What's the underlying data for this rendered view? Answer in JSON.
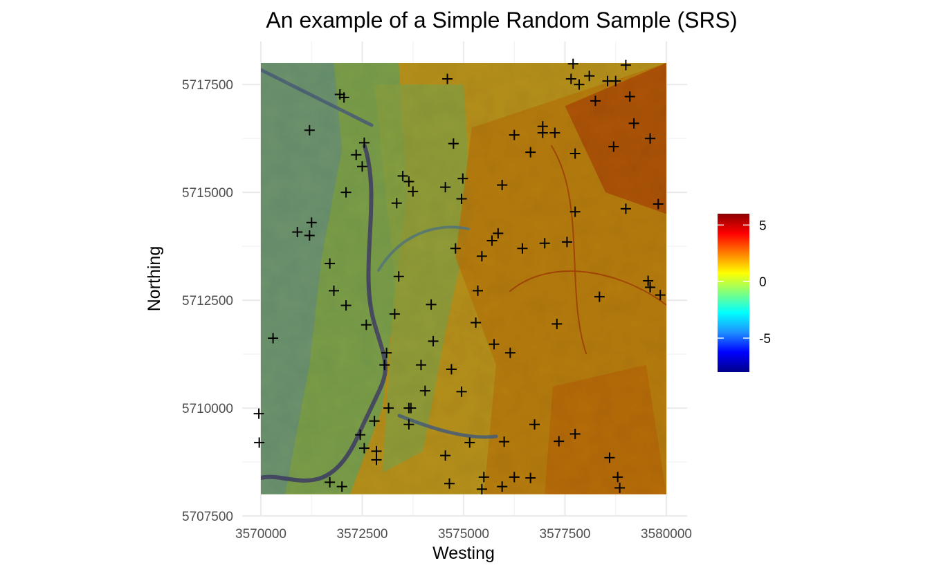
{
  "chart_data": {
    "type": "scatter",
    "title": "An example of a Simple Random Sample (SRS)",
    "xlabel": "Westing",
    "ylabel": "Northing",
    "xlim": [
      3570000,
      3580000
    ],
    "ylim": [
      5707500,
      5718000
    ],
    "raster_extent": {
      "x": [
        3570000,
        3580000
      ],
      "y": [
        5708000,
        5718000
      ]
    },
    "x_ticks": [
      3570000,
      3572500,
      3575000,
      3577500,
      3580000
    ],
    "y_ticks": [
      5707500,
      5710000,
      5712500,
      5715000,
      5717500
    ],
    "x_tick_labels": [
      "3570000",
      "3572500",
      "3575000",
      "3577500",
      "3580000"
    ],
    "y_tick_labels": [
      "5707500",
      "5710000",
      "5712500",
      "5715000",
      "5717500"
    ],
    "grid": true,
    "background_raster": "continuous terrain raster, low values in west, high values in east",
    "legend": {
      "position": "right",
      "range": [
        -8,
        6
      ],
      "ticks": [
        5,
        0,
        -5
      ],
      "tick_labels": [
        "5",
        "0",
        "-5"
      ],
      "colors": [
        "#00008b",
        "#0000ff",
        "#1e90ff",
        "#00ffff",
        "#7fff7f",
        "#ffff00",
        "#ff7f00",
        "#ff0000",
        "#8b0000"
      ]
    },
    "marker": "+",
    "points": [
      {
        "x": 3569950,
        "y": 5709870
      },
      {
        "x": 3569960,
        "y": 5709200
      },
      {
        "x": 3570300,
        "y": 5711620
      },
      {
        "x": 3570900,
        "y": 5714080
      },
      {
        "x": 3571200,
        "y": 5714000
      },
      {
        "x": 3571250,
        "y": 5714300
      },
      {
        "x": 3571200,
        "y": 5716440
      },
      {
        "x": 3571700,
        "y": 5713350
      },
      {
        "x": 3571800,
        "y": 5712720
      },
      {
        "x": 3571700,
        "y": 5708280
      },
      {
        "x": 3572000,
        "y": 5708180
      },
      {
        "x": 3571950,
        "y": 5717270
      },
      {
        "x": 3572050,
        "y": 5717200
      },
      {
        "x": 3572100,
        "y": 5715000
      },
      {
        "x": 3572100,
        "y": 5712380
      },
      {
        "x": 3572350,
        "y": 5715870
      },
      {
        "x": 3572450,
        "y": 5709380
      },
      {
        "x": 3572500,
        "y": 5715600
      },
      {
        "x": 3572550,
        "y": 5716150
      },
      {
        "x": 3572550,
        "y": 5709070
      },
      {
        "x": 3572600,
        "y": 5711930
      },
      {
        "x": 3572800,
        "y": 5709700
      },
      {
        "x": 3572850,
        "y": 5709000
      },
      {
        "x": 3572850,
        "y": 5708800
      },
      {
        "x": 3573100,
        "y": 5711280
      },
      {
        "x": 3573050,
        "y": 5711000
      },
      {
        "x": 3573150,
        "y": 5710000
      },
      {
        "x": 3573300,
        "y": 5712180
      },
      {
        "x": 3573350,
        "y": 5714750
      },
      {
        "x": 3573400,
        "y": 5713050
      },
      {
        "x": 3573500,
        "y": 5715380
      },
      {
        "x": 3573650,
        "y": 5715250
      },
      {
        "x": 3573650,
        "y": 5710000
      },
      {
        "x": 3573700,
        "y": 5710000
      },
      {
        "x": 3573750,
        "y": 5715020
      },
      {
        "x": 3573650,
        "y": 5709620
      },
      {
        "x": 3573950,
        "y": 5711000
      },
      {
        "x": 3574050,
        "y": 5710400
      },
      {
        "x": 3574200,
        "y": 5712400
      },
      {
        "x": 3574250,
        "y": 5711550
      },
      {
        "x": 3574550,
        "y": 5715120
      },
      {
        "x": 3574600,
        "y": 5717630
      },
      {
        "x": 3574550,
        "y": 5708900
      },
      {
        "x": 3574650,
        "y": 5708250
      },
      {
        "x": 3574700,
        "y": 5710900
      },
      {
        "x": 3574750,
        "y": 5716130
      },
      {
        "x": 3574800,
        "y": 5713700
      },
      {
        "x": 3574950,
        "y": 5714850
      },
      {
        "x": 3574980,
        "y": 5715320
      },
      {
        "x": 3574950,
        "y": 5710380
      },
      {
        "x": 3575150,
        "y": 5709200
      },
      {
        "x": 3575300,
        "y": 5711980
      },
      {
        "x": 3575350,
        "y": 5712720
      },
      {
        "x": 3575450,
        "y": 5713520
      },
      {
        "x": 3575450,
        "y": 5708120
      },
      {
        "x": 3575500,
        "y": 5708400
      },
      {
        "x": 3575700,
        "y": 5713880
      },
      {
        "x": 3575750,
        "y": 5711480
      },
      {
        "x": 3575850,
        "y": 5714050
      },
      {
        "x": 3575950,
        "y": 5715170
      },
      {
        "x": 3576000,
        "y": 5709220
      },
      {
        "x": 3575950,
        "y": 5708180
      },
      {
        "x": 3576150,
        "y": 5711280
      },
      {
        "x": 3576250,
        "y": 5716330
      },
      {
        "x": 3576250,
        "y": 5708400
      },
      {
        "x": 3576450,
        "y": 5713700
      },
      {
        "x": 3576650,
        "y": 5715930
      },
      {
        "x": 3576650,
        "y": 5708380
      },
      {
        "x": 3576750,
        "y": 5709620
      },
      {
        "x": 3576950,
        "y": 5716530
      },
      {
        "x": 3576950,
        "y": 5716380
      },
      {
        "x": 3577000,
        "y": 5713820
      },
      {
        "x": 3577250,
        "y": 5716380
      },
      {
        "x": 3577300,
        "y": 5711950
      },
      {
        "x": 3577350,
        "y": 5709230
      },
      {
        "x": 3577550,
        "y": 5713850
      },
      {
        "x": 3577650,
        "y": 5717630
      },
      {
        "x": 3577700,
        "y": 5717980
      },
      {
        "x": 3577750,
        "y": 5715900
      },
      {
        "x": 3577750,
        "y": 5709400
      },
      {
        "x": 3577750,
        "y": 5714550
      },
      {
        "x": 3577850,
        "y": 5717500
      },
      {
        "x": 3578100,
        "y": 5717700
      },
      {
        "x": 3578250,
        "y": 5717120
      },
      {
        "x": 3578350,
        "y": 5712580
      },
      {
        "x": 3578550,
        "y": 5717580
      },
      {
        "x": 3578600,
        "y": 5708850
      },
      {
        "x": 3578700,
        "y": 5716060
      },
      {
        "x": 3578750,
        "y": 5717580
      },
      {
        "x": 3578800,
        "y": 5708400
      },
      {
        "x": 3578850,
        "y": 5708150
      },
      {
        "x": 3579000,
        "y": 5717950
      },
      {
        "x": 3579000,
        "y": 5714620
      },
      {
        "x": 3579100,
        "y": 5717220
      },
      {
        "x": 3579200,
        "y": 5716600
      },
      {
        "x": 3579550,
        "y": 5712950
      },
      {
        "x": 3579600,
        "y": 5716250
      },
      {
        "x": 3579600,
        "y": 5712800
      },
      {
        "x": 3579800,
        "y": 5714730
      },
      {
        "x": 3579850,
        "y": 5712620
      }
    ]
  }
}
